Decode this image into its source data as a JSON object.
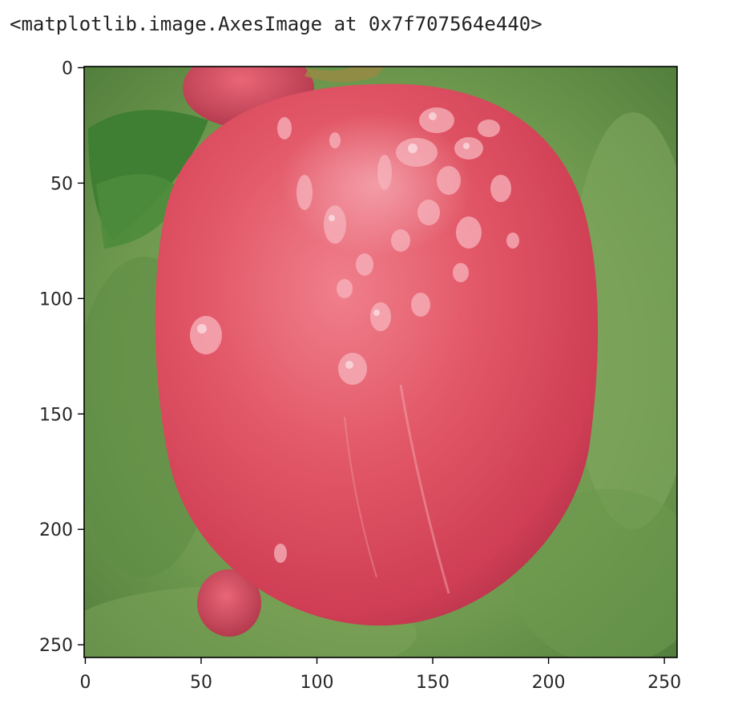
{
  "output_repr": "<matplotlib.image.AxesImage at 0x7f707564e440>",
  "image": {
    "subject": "apple-photo",
    "colors": {
      "background_green": "#6f9a4f",
      "apple_red": "#d6435a",
      "apple_highlight": "#f07f8c",
      "leaf_green": "#3f7f33"
    }
  },
  "axes": {
    "x_ticks": [
      "0",
      "50",
      "100",
      "150",
      "200",
      "250"
    ],
    "y_ticks": [
      "0",
      "50",
      "100",
      "150",
      "200",
      "250"
    ],
    "x_values": [
      0,
      50,
      100,
      150,
      200,
      250
    ],
    "y_values": [
      0,
      50,
      100,
      150,
      200,
      250
    ],
    "x_range": [
      -0.5,
      255.5
    ],
    "y_range": [
      255.5,
      -0.5
    ]
  }
}
